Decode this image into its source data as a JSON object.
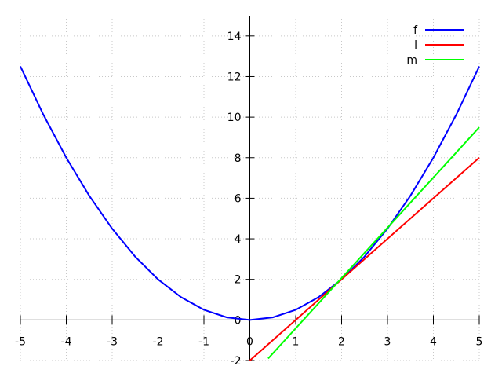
{
  "chart_data": {
    "type": "line",
    "title": "",
    "xlabel": "",
    "ylabel": "",
    "xlim": [
      -5,
      5
    ],
    "ylim": [
      -2,
      15
    ],
    "x_ticks": [
      -5,
      -4,
      -3,
      -2,
      -1,
      0,
      1,
      2,
      3,
      4,
      5
    ],
    "y_ticks": [
      -2,
      0,
      2,
      4,
      6,
      8,
      10,
      12,
      14
    ],
    "grid": true,
    "legend_position": "top-right",
    "series": [
      {
        "name": "f",
        "color": "#0000ff",
        "x": [
          -5,
          -4.5,
          -4,
          -3.5,
          -3,
          -2.5,
          -2,
          -1.5,
          -1,
          -0.5,
          0,
          0.5,
          1,
          1.5,
          2,
          2.5,
          3,
          3.5,
          4,
          4.5,
          5
        ],
        "y": [
          12.5,
          10.125,
          8,
          6.125,
          4.5,
          3.125,
          2,
          1.125,
          0.5,
          0.125,
          0,
          0.125,
          0.5,
          1.125,
          2,
          3.125,
          4.5,
          6.125,
          8,
          10.125,
          12.5
        ]
      },
      {
        "name": "l",
        "color": "#ff0000",
        "x": [
          0,
          5
        ],
        "y": [
          -2,
          8
        ]
      },
      {
        "name": "m",
        "color": "#00ff00",
        "x": [
          0.4,
          5
        ],
        "y": [
          -1.9,
          9.5
        ]
      }
    ]
  }
}
